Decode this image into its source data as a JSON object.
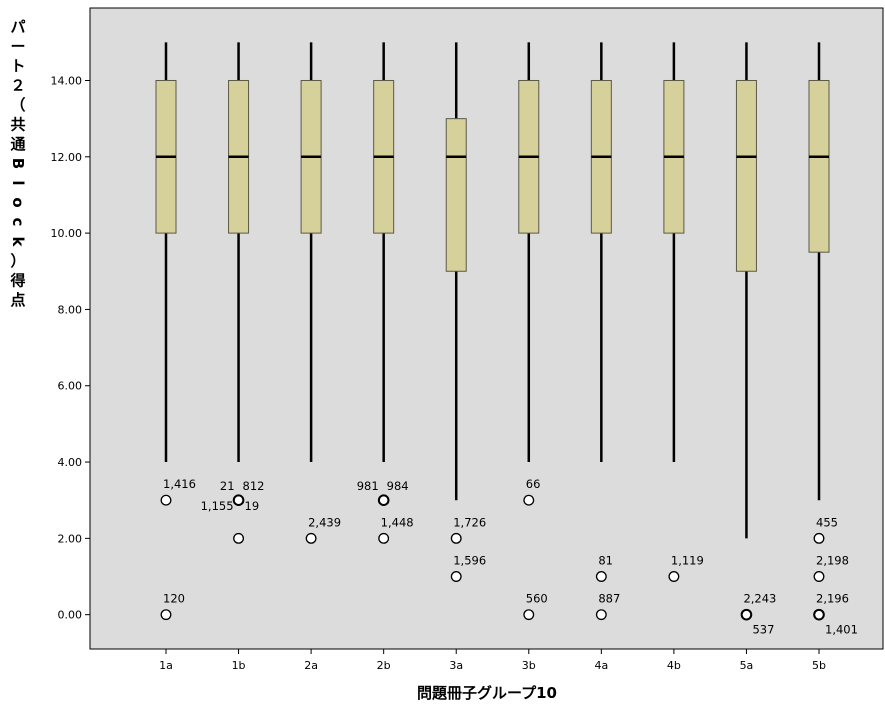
{
  "chart_data": {
    "type": "boxplot",
    "xlabel": "問題冊子グループ10",
    "ylabel": "パート２（共通Block）得点",
    "ylim": [
      -0.9,
      15.9
    ],
    "yticks": [
      0,
      2,
      4,
      6,
      8,
      10,
      12,
      14
    ],
    "ytick_labels": [
      "0.00",
      "2.00",
      "4.00",
      "6.00",
      "8.00",
      "10.00",
      "12.00",
      "14.00"
    ],
    "grid": false,
    "colors": {
      "plot_bg": "#dcdcdc",
      "box_fill": "#d6d09a",
      "box_stroke": "#5a5a46"
    },
    "categories": [
      "1a",
      "1b",
      "2a",
      "2b",
      "3a",
      "3b",
      "4a",
      "4b",
      "5a",
      "5b"
    ],
    "boxes": [
      {
        "category": "1a",
        "whisker_low": 4,
        "q1": 10,
        "median": 12,
        "q3": 14,
        "whisker_high": 15,
        "outliers": [
          {
            "value": 3,
            "labels": [
              "1,416"
            ]
          },
          {
            "value": 0,
            "labels": [
              "120"
            ]
          }
        ]
      },
      {
        "category": "1b",
        "whisker_low": 4,
        "q1": 10,
        "median": 12,
        "q3": 14,
        "whisker_high": 15,
        "outliers": [
          {
            "value": 3,
            "labels": [
              "21",
              "812",
              "1,155",
              "19"
            ]
          },
          {
            "value": 2,
            "labels": []
          }
        ]
      },
      {
        "category": "2a",
        "whisker_low": 4,
        "q1": 10,
        "median": 12,
        "q3": 14,
        "whisker_high": 15,
        "outliers": [
          {
            "value": 2,
            "labels": [
              "2,439"
            ]
          }
        ]
      },
      {
        "category": "2b",
        "whisker_low": 4,
        "q1": 10,
        "median": 12,
        "q3": 14,
        "whisker_high": 15,
        "outliers": [
          {
            "value": 3,
            "labels": [
              "981",
              "984"
            ]
          },
          {
            "value": 2,
            "labels": [
              "1,448"
            ]
          }
        ]
      },
      {
        "category": "3a",
        "whisker_low": 3,
        "q1": 9,
        "median": 12,
        "q3": 13,
        "whisker_high": 15,
        "outliers": [
          {
            "value": 2,
            "labels": [
              "1,726"
            ]
          },
          {
            "value": 1,
            "labels": [
              "1,596"
            ]
          }
        ]
      },
      {
        "category": "3b",
        "whisker_low": 4,
        "q1": 10,
        "median": 12,
        "q3": 14,
        "whisker_high": 15,
        "outliers": [
          {
            "value": 3,
            "labels": [
              "66"
            ]
          },
          {
            "value": 0,
            "labels": [
              "560"
            ]
          }
        ]
      },
      {
        "category": "4a",
        "whisker_low": 4,
        "q1": 10,
        "median": 12,
        "q3": 14,
        "whisker_high": 15,
        "outliers": [
          {
            "value": 1,
            "labels": [
              "81"
            ]
          },
          {
            "value": 0,
            "labels": [
              "887"
            ]
          }
        ]
      },
      {
        "category": "4b",
        "whisker_low": 4,
        "q1": 10,
        "median": 12,
        "q3": 14,
        "whisker_high": 15,
        "outliers": [
          {
            "value": 1,
            "labels": [
              "1,119"
            ]
          }
        ]
      },
      {
        "category": "5a",
        "whisker_low": 2,
        "q1": 9,
        "median": 12,
        "q3": 14,
        "whisker_high": 15,
        "outliers": [
          {
            "value": 0,
            "labels": [
              "2,243",
              "537"
            ]
          }
        ]
      },
      {
        "category": "5b",
        "whisker_low": 3,
        "q1": 9.5,
        "median": 12,
        "q3": 14,
        "whisker_high": 15,
        "outliers": [
          {
            "value": 2,
            "labels": [
              "455"
            ]
          },
          {
            "value": 1,
            "labels": [
              "2,198"
            ]
          },
          {
            "value": 0,
            "labels": [
              "2,196",
              "1,401"
            ]
          }
        ]
      }
    ]
  }
}
